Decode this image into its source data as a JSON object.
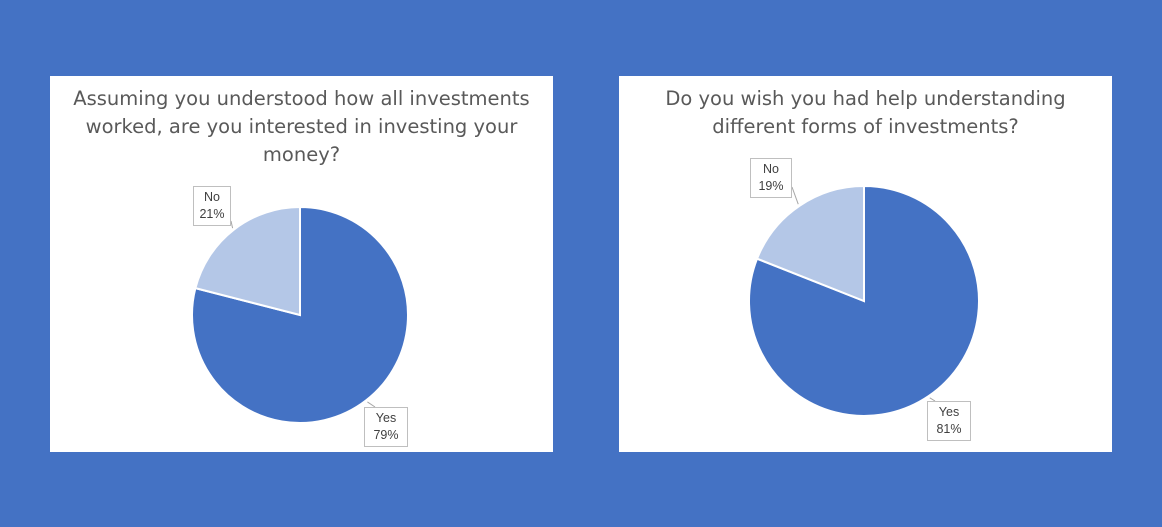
{
  "colors": {
    "background": "#4472C4",
    "yes": "#4472C4",
    "no": "#B4C7E7"
  },
  "chart_data": [
    {
      "type": "pie",
      "title": "Assuming you understood how all investments worked, are you interested in investing your money?",
      "slices": [
        {
          "name": "Yes",
          "value": 79,
          "label": "79%"
        },
        {
          "name": "No",
          "value": 21,
          "label": "21%"
        }
      ]
    },
    {
      "type": "pie",
      "title": "Do you wish you had help understanding different forms of investments?",
      "slices": [
        {
          "name": "Yes",
          "value": 81,
          "label": "81%"
        },
        {
          "name": "No",
          "value": 19,
          "label": "19%"
        }
      ]
    }
  ]
}
